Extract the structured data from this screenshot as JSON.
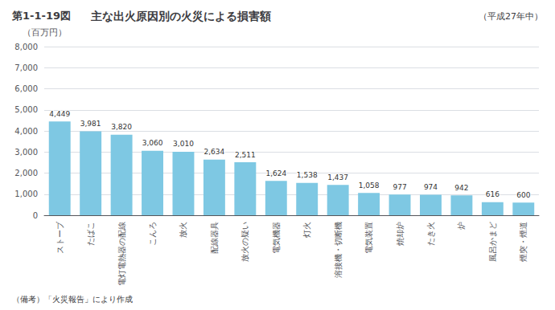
{
  "chart_data": {
    "type": "bar",
    "title": "主な出火原因別の火災による損害額",
    "subtitle": "（平成27年中）",
    "ylabel": "（百万円）",
    "annotations": [
      "第1-1-19図",
      "（備考）「火災報告」により作成"
    ],
    "categories": [
      "ストーブ",
      "たばこ",
      "電灯電熱器の配線",
      "こんろ",
      "放火",
      "配線器具",
      "放火の疑い",
      "電気機器",
      "灯火",
      "溶接機・切断機",
      "電気装置",
      "焼却炉",
      "たき火",
      "炉",
      "風呂かまど",
      "煙突・煙道"
    ],
    "values": [
      4449,
      3981,
      3820,
      3060,
      3010,
      2634,
      2511,
      1624,
      1538,
      1437,
      1058,
      977,
      974,
      942,
      616,
      600
    ],
    "value_labels": [
      "4,449",
      "3,981",
      "3,820",
      "3,060",
      "3,010",
      "2,634",
      "2,511",
      "1,624",
      "1,538",
      "1,437",
      "1,058",
      "977",
      "974",
      "942",
      "616",
      "600"
    ],
    "color": "#7ec8e3",
    "ylim": [
      0,
      8000
    ],
    "yticks": [
      0,
      {
        "value": 1000,
        "label": "1,000"
      },
      {
        "value": 2000,
        "label": "2,000"
      },
      {
        "value": 3000,
        "label": "3,000"
      },
      {
        "value": 4000,
        "label": "4,000"
      },
      {
        "value": 5000,
        "label": "5,000"
      },
      {
        "value": 6000,
        "label": "6,000"
      },
      {
        "value": 7000,
        "label": "7,000"
      },
      {
        "value": 8000,
        "label": "8,000"
      }
    ],
    "grid": true,
    "data_labels": true
  }
}
